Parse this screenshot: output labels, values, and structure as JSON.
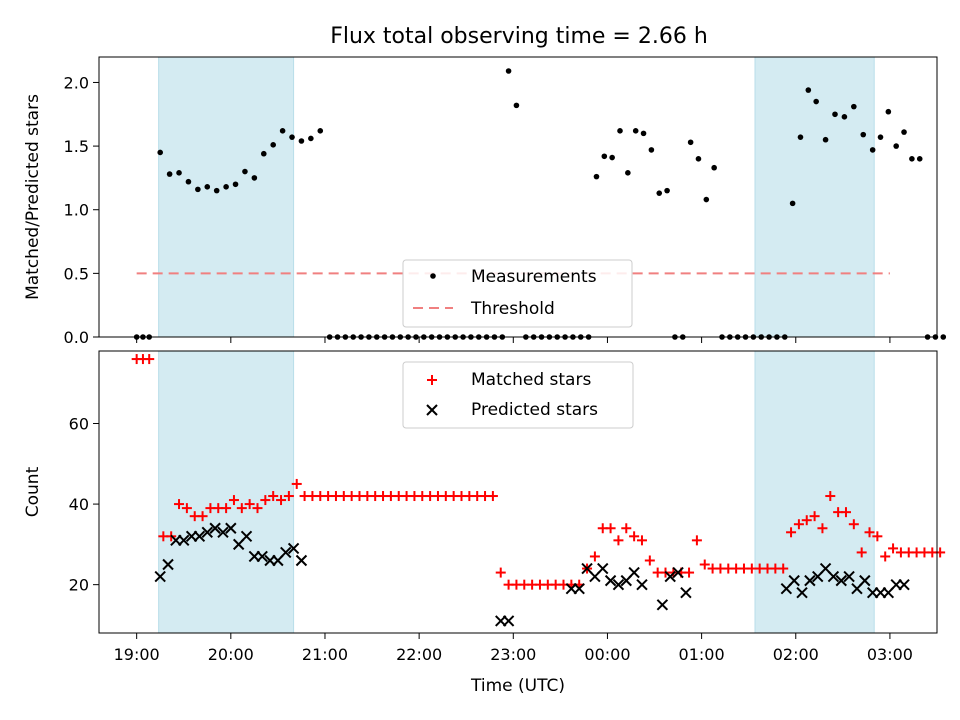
{
  "chart_data": [
    {
      "type": "scatter",
      "title": "Flux total observing time = 2.66 h",
      "xlabel": "",
      "ylabel": "Matched/Predicted stars",
      "ylim": [
        0,
        2.2
      ],
      "yticks": [
        "0.0",
        "0.5",
        "1.0",
        "1.5",
        "2.0"
      ],
      "ytick_values": [
        0,
        0.5,
        1.0,
        1.5,
        2.0
      ],
      "legend": {
        "placement": "lower-center",
        "entries": [
          "Measurements",
          "Threshold"
        ]
      },
      "threshold": 0.5,
      "threshold_color": "#f08080",
      "shaded_regions": [
        [
          "19:14",
          "20:40"
        ],
        [
          "01:34",
          "02:50"
        ]
      ],
      "shade_color": "#add8e6",
      "marker_color": "#000000",
      "series": [
        {
          "name": "Measurements",
          "points": [
            [
              "19:00",
              0
            ],
            [
              "19:04",
              0
            ],
            [
              "19:08",
              0
            ],
            [
              "19:15",
              1.45
            ],
            [
              "19:21",
              1.28
            ],
            [
              "19:27",
              1.29
            ],
            [
              "19:33",
              1.22
            ],
            [
              "19:39",
              1.16
            ],
            [
              "19:45",
              1.18
            ],
            [
              "19:51",
              1.15
            ],
            [
              "19:57",
              1.18
            ],
            [
              "20:03",
              1.2
            ],
            [
              "20:09",
              1.3
            ],
            [
              "20:15",
              1.25
            ],
            [
              "20:21",
              1.44
            ],
            [
              "20:27",
              1.51
            ],
            [
              "20:33",
              1.62
            ],
            [
              "20:39",
              1.57
            ],
            [
              "20:45",
              1.54
            ],
            [
              "20:51",
              1.56
            ],
            [
              "20:57",
              1.62
            ],
            [
              "21:03",
              0
            ],
            [
              "21:08",
              0
            ],
            [
              "21:13",
              0
            ],
            [
              "21:18",
              0
            ],
            [
              "21:23",
              0
            ],
            [
              "21:28",
              0
            ],
            [
              "21:33",
              0
            ],
            [
              "21:38",
              0
            ],
            [
              "21:43",
              0
            ],
            [
              "21:48",
              0
            ],
            [
              "21:53",
              0
            ],
            [
              "21:58",
              0
            ],
            [
              "22:03",
              0
            ],
            [
              "22:08",
              0
            ],
            [
              "22:13",
              0
            ],
            [
              "22:18",
              0
            ],
            [
              "22:23",
              0
            ],
            [
              "22:28",
              0
            ],
            [
              "22:33",
              0
            ],
            [
              "22:38",
              0
            ],
            [
              "22:43",
              0
            ],
            [
              "22:48",
              0
            ],
            [
              "22:53",
              0
            ],
            [
              "22:57",
              2.09
            ],
            [
              "23:02",
              1.82
            ],
            [
              "23:08",
              0
            ],
            [
              "23:13",
              0
            ],
            [
              "23:18",
              0
            ],
            [
              "23:23",
              0
            ],
            [
              "23:28",
              0
            ],
            [
              "23:33",
              0
            ],
            [
              "23:38",
              0
            ],
            [
              "23:43",
              0
            ],
            [
              "23:48",
              0
            ],
            [
              "23:53",
              1.26
            ],
            [
              "23:58",
              1.42
            ],
            [
              "00:03",
              1.41
            ],
            [
              "00:08",
              1.62
            ],
            [
              "00:13",
              1.29
            ],
            [
              "00:18",
              1.62
            ],
            [
              "00:23",
              1.6
            ],
            [
              "00:28",
              1.47
            ],
            [
              "00:33",
              1.13
            ],
            [
              "00:38",
              1.15
            ],
            [
              "00:43",
              0
            ],
            [
              "00:48",
              0
            ],
            [
              "00:53",
              1.53
            ],
            [
              "00:58",
              1.4
            ],
            [
              "01:03",
              1.08
            ],
            [
              "01:08",
              1.33
            ],
            [
              "01:13",
              0
            ],
            [
              "01:18",
              0
            ],
            [
              "01:23",
              0
            ],
            [
              "01:28",
              0
            ],
            [
              "01:33",
              0
            ],
            [
              "01:38",
              0
            ],
            [
              "01:43",
              0
            ],
            [
              "01:48",
              0
            ],
            [
              "01:53",
              0
            ],
            [
              "01:58",
              1.05
            ],
            [
              "02:03",
              1.57
            ],
            [
              "02:08",
              1.94
            ],
            [
              "02:13",
              1.85
            ],
            [
              "02:19",
              1.55
            ],
            [
              "02:25",
              1.75
            ],
            [
              "02:31",
              1.73
            ],
            [
              "02:37",
              1.81
            ],
            [
              "02:43",
              1.59
            ],
            [
              "02:49",
              1.47
            ],
            [
              "02:54",
              1.57
            ],
            [
              "02:59",
              1.77
            ],
            [
              "03:04",
              1.5
            ],
            [
              "03:09",
              1.61
            ],
            [
              "03:14",
              1.4
            ],
            [
              "03:19",
              1.4
            ],
            [
              "03:24",
              0
            ],
            [
              "03:29",
              0
            ],
            [
              "03:34",
              0
            ]
          ]
        }
      ]
    },
    {
      "type": "scatter",
      "title": "",
      "xlabel": "Time (UTC)",
      "ylabel": "Count",
      "ylim": [
        8,
        78
      ],
      "yticks": [
        "20",
        "40",
        "60"
      ],
      "ytick_values": [
        20,
        40,
        60
      ],
      "xticks": [
        "19:00",
        "20:00",
        "21:00",
        "22:00",
        "23:00",
        "00:00",
        "01:00",
        "02:00",
        "03:00"
      ],
      "xlim": [
        "18:36",
        "03:30"
      ],
      "legend": {
        "placement": "upper-center",
        "entries": [
          "Matched stars",
          "Predicted stars"
        ]
      },
      "shaded_regions": [
        [
          "19:14",
          "20:40"
        ],
        [
          "01:34",
          "02:50"
        ]
      ],
      "series": [
        {
          "name": "Matched stars",
          "color": "#ff0000",
          "marker": "plus",
          "points": [
            [
              "19:00",
              76
            ],
            [
              "19:04",
              76
            ],
            [
              "19:08",
              76
            ],
            [
              "19:17",
              32
            ],
            [
              "19:22",
              32
            ],
            [
              "19:27",
              40
            ],
            [
              "19:32",
              39
            ],
            [
              "19:37",
              37
            ],
            [
              "19:42",
              37
            ],
            [
              "19:47",
              39
            ],
            [
              "19:52",
              39
            ],
            [
              "19:57",
              39
            ],
            [
              "20:02",
              41
            ],
            [
              "20:07",
              39
            ],
            [
              "20:12",
              40
            ],
            [
              "20:17",
              39
            ],
            [
              "20:22",
              41
            ],
            [
              "20:27",
              42
            ],
            [
              "20:32",
              41
            ],
            [
              "20:37",
              42
            ],
            [
              "20:42",
              45
            ],
            [
              "20:47",
              42
            ],
            [
              "20:52",
              42
            ],
            [
              "20:57",
              42
            ],
            [
              "21:02",
              42
            ],
            [
              "21:07",
              42
            ],
            [
              "21:12",
              42
            ],
            [
              "21:17",
              42
            ],
            [
              "21:22",
              42
            ],
            [
              "21:27",
              42
            ],
            [
              "21:32",
              42
            ],
            [
              "21:37",
              42
            ],
            [
              "21:42",
              42
            ],
            [
              "21:47",
              42
            ],
            [
              "21:52",
              42
            ],
            [
              "21:57",
              42
            ],
            [
              "22:02",
              42
            ],
            [
              "22:07",
              42
            ],
            [
              "22:12",
              42
            ],
            [
              "22:17",
              42
            ],
            [
              "22:22",
              42
            ],
            [
              "22:27",
              42
            ],
            [
              "22:32",
              42
            ],
            [
              "22:37",
              42
            ],
            [
              "22:42",
              42
            ],
            [
              "22:47",
              42
            ],
            [
              "22:52",
              23
            ],
            [
              "22:57",
              20
            ],
            [
              "23:02",
              20
            ],
            [
              "23:07",
              20
            ],
            [
              "23:12",
              20
            ],
            [
              "23:17",
              20
            ],
            [
              "23:22",
              20
            ],
            [
              "23:27",
              20
            ],
            [
              "23:32",
              20
            ],
            [
              "23:37",
              20
            ],
            [
              "23:42",
              20
            ],
            [
              "23:47",
              24
            ],
            [
              "23:52",
              27
            ],
            [
              "23:57",
              34
            ],
            [
              "00:02",
              34
            ],
            [
              "00:07",
              31
            ],
            [
              "00:12",
              34
            ],
            [
              "00:17",
              32
            ],
            [
              "00:22",
              31
            ],
            [
              "00:27",
              26
            ],
            [
              "00:32",
              23
            ],
            [
              "00:37",
              23
            ],
            [
              "00:42",
              23
            ],
            [
              "00:47",
              23
            ],
            [
              "00:52",
              23
            ],
            [
              "00:57",
              31
            ],
            [
              "01:02",
              25
            ],
            [
              "01:07",
              24
            ],
            [
              "01:12",
              24
            ],
            [
              "01:17",
              24
            ],
            [
              "01:22",
              24
            ],
            [
              "01:27",
              24
            ],
            [
              "01:32",
              24
            ],
            [
              "01:37",
              24
            ],
            [
              "01:42",
              24
            ],
            [
              "01:47",
              24
            ],
            [
              "01:52",
              24
            ],
            [
              "01:57",
              33
            ],
            [
              "02:02",
              35
            ],
            [
              "02:07",
              36
            ],
            [
              "02:12",
              37
            ],
            [
              "02:17",
              34
            ],
            [
              "02:22",
              42
            ],
            [
              "02:27",
              38
            ],
            [
              "02:32",
              38
            ],
            [
              "02:37",
              35
            ],
            [
              "02:42",
              28
            ],
            [
              "02:47",
              33
            ],
            [
              "02:52",
              32
            ],
            [
              "02:57",
              27
            ],
            [
              "03:02",
              29
            ],
            [
              "03:07",
              28
            ],
            [
              "03:12",
              28
            ],
            [
              "03:17",
              28
            ],
            [
              "03:22",
              28
            ],
            [
              "03:27",
              28
            ],
            [
              "03:32",
              28
            ]
          ]
        },
        {
          "name": "Predicted stars",
          "color": "#000000",
          "marker": "x",
          "points": [
            [
              "19:15",
              22
            ],
            [
              "19:20",
              25
            ],
            [
              "19:25",
              31
            ],
            [
              "19:30",
              31
            ],
            [
              "19:35",
              32
            ],
            [
              "19:40",
              32
            ],
            [
              "19:45",
              33
            ],
            [
              "19:50",
              34
            ],
            [
              "19:55",
              33
            ],
            [
              "20:00",
              34
            ],
            [
              "20:05",
              30
            ],
            [
              "20:10",
              32
            ],
            [
              "20:15",
              27
            ],
            [
              "20:20",
              27
            ],
            [
              "20:25",
              26
            ],
            [
              "20:30",
              26
            ],
            [
              "20:35",
              28
            ],
            [
              "20:40",
              29
            ],
            [
              "20:45",
              26
            ],
            [
              "22:52",
              11
            ],
            [
              "22:57",
              11
            ],
            [
              "23:37",
              19
            ],
            [
              "23:42",
              19
            ],
            [
              "23:47",
              24
            ],
            [
              "23:52",
              22
            ],
            [
              "23:57",
              24
            ],
            [
              "00:02",
              21
            ],
            [
              "00:07",
              20
            ],
            [
              "00:12",
              21
            ],
            [
              "00:17",
              23
            ],
            [
              "00:22",
              20
            ],
            [
              "00:35",
              15
            ],
            [
              "00:40",
              22
            ],
            [
              "00:45",
              23
            ],
            [
              "00:50",
              18
            ],
            [
              "01:54",
              19
            ],
            [
              "01:59",
              21
            ],
            [
              "02:04",
              18
            ],
            [
              "02:09",
              21
            ],
            [
              "02:14",
              22
            ],
            [
              "02:19",
              24
            ],
            [
              "02:24",
              22
            ],
            [
              "02:29",
              21
            ],
            [
              "02:34",
              22
            ],
            [
              "02:39",
              19
            ],
            [
              "02:44",
              21
            ],
            [
              "02:49",
              18
            ],
            [
              "02:54",
              18
            ],
            [
              "02:59",
              18
            ],
            [
              "03:04",
              20
            ],
            [
              "03:09",
              20
            ]
          ]
        }
      ]
    }
  ]
}
